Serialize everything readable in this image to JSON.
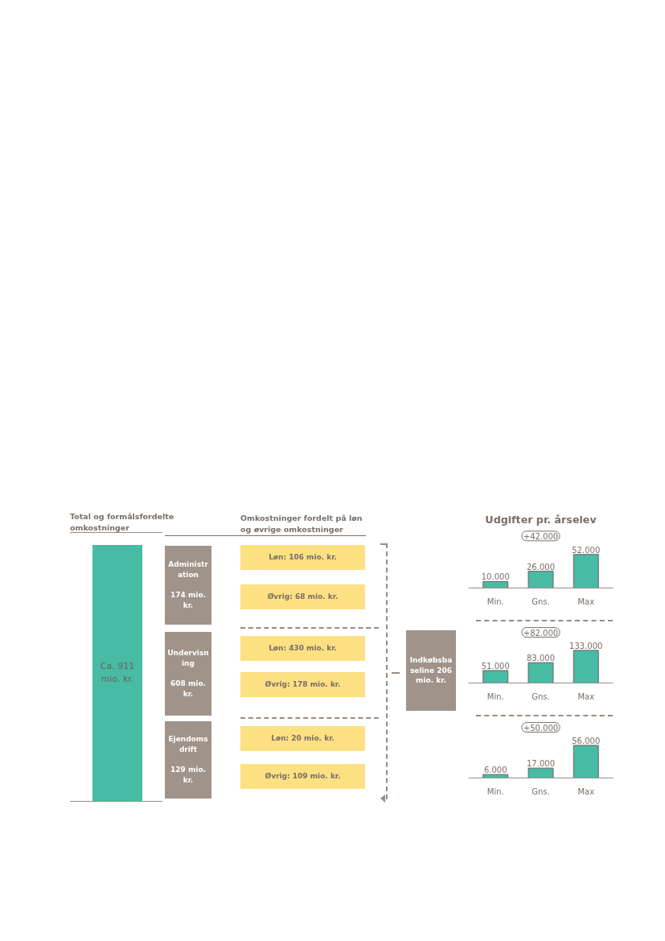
{
  "chart_data": [
    {
      "type": "other",
      "title": "Total og formålsfordelte omkostninger",
      "subtitle": "Omkostninger fordelt på løn og øvrige omkostninger",
      "annotations": [
        "Ca. 911 mio. kr.",
        "Administration",
        "174 mio. kr.",
        "Løn: 106 mio. kr.",
        "Øvrig: 68 mio. kr.",
        "Undervisning",
        "608 mio. kr.",
        "Løn: 430 mio. kr.",
        "Øvrig: 178 mio. kr.",
        "Ejendomsdrift",
        "129 mio. kr.",
        "Løn: 20 mio. kr.",
        "Øvrig: 109 mio. kr.",
        "Indkøbsbaseline 206 mio. kr."
      ]
    },
    {
      "type": "bar",
      "title": "Udgifter pr. årselev",
      "categories": [
        "Min.",
        "Gns.",
        "Max"
      ],
      "values": [
        10000,
        26000,
        52000
      ],
      "value_labels": [
        "10.000",
        "26.000",
        "52.000"
      ],
      "color": "#48bba5",
      "annotations": [
        "+42.000"
      ]
    },
    {
      "type": "bar",
      "categories": [
        "Min.",
        "Gns.",
        "Max"
      ],
      "values": [
        51000,
        83000,
        133000
      ],
      "value_labels": [
        "51.000",
        "83.000",
        "133.000"
      ],
      "color": "#48bba5",
      "annotations": [
        "+82.000"
      ]
    },
    {
      "type": "bar",
      "categories": [
        "Min.",
        "Gns.",
        "Max"
      ],
      "values": [
        6000,
        17000,
        56000
      ],
      "value_labels": [
        "6.000",
        "17.000",
        "56.000"
      ],
      "color": "#48bba5",
      "annotations": [
        "+50.000"
      ]
    }
  ]
}
